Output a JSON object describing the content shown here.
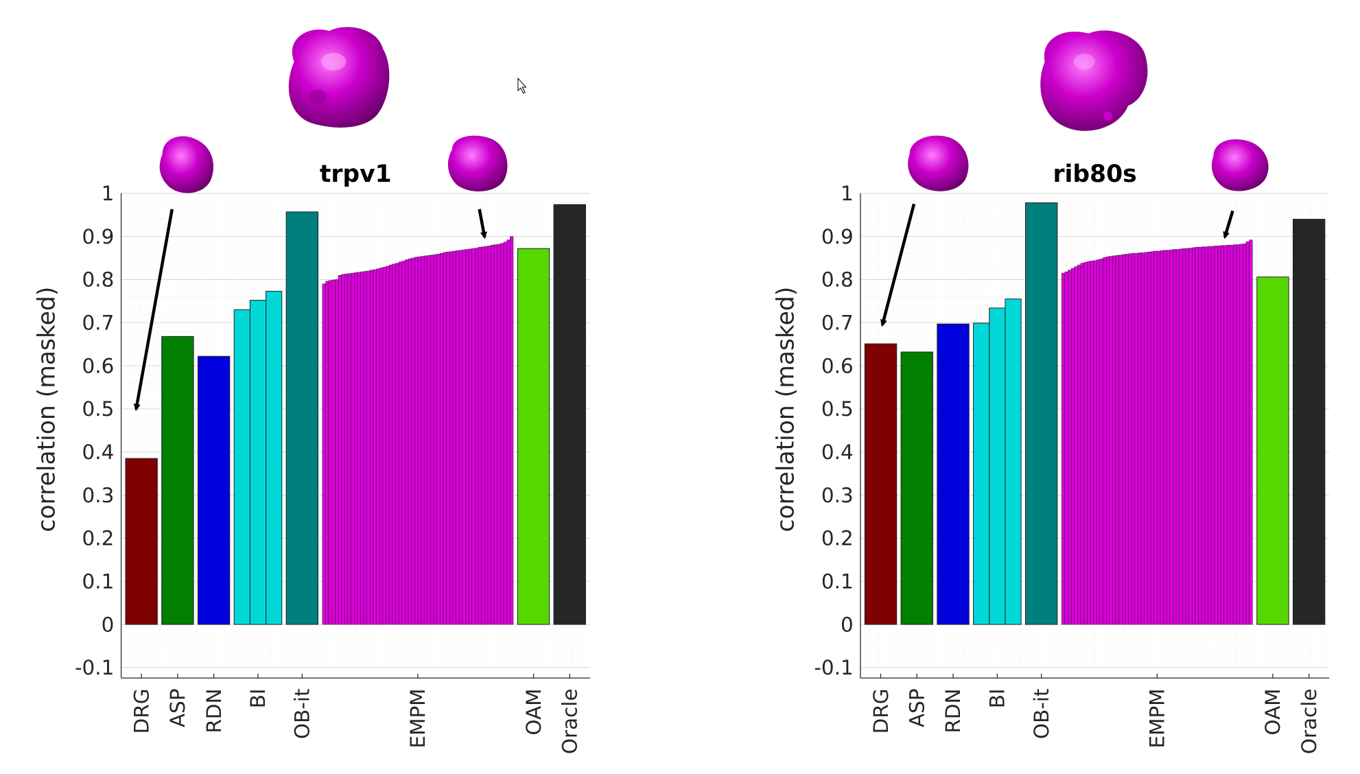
{
  "chart_data": [
    {
      "type": "bar",
      "title": "trpv1",
      "ylabel": "correlation (masked)",
      "xlabel": "",
      "ylim": [
        -0.1,
        1
      ],
      "yticks": [
        "-0.1",
        "0",
        "0.1",
        "0.2",
        "0.3",
        "0.4",
        "0.5",
        "0.6",
        "0.7",
        "0.8",
        "0.9",
        "1"
      ],
      "grid": true,
      "categories": [
        "DRG",
        "ASP",
        "RDN",
        "BI",
        "OB-it",
        "EMPM",
        "OAM",
        "Oracle"
      ],
      "groups": [
        {
          "label": "DRG",
          "color": "#7f0000",
          "values": [
            0.385
          ]
        },
        {
          "label": "ASP",
          "color": "#007f00",
          "values": [
            0.668
          ]
        },
        {
          "label": "RDN",
          "color": "#0000dd",
          "values": [
            0.622
          ]
        },
        {
          "label": "BI",
          "color": "#00d8d8",
          "values": [
            0.73,
            0.752,
            0.773
          ]
        },
        {
          "label": "OB-it",
          "color": "#007f7f",
          "values": [
            0.957
          ]
        },
        {
          "label": "EMPM",
          "color": "#dd00dd",
          "values": [
            0.79,
            0.796,
            0.798,
            0.799,
            0.8,
            0.81,
            0.812,
            0.813,
            0.814,
            0.815,
            0.816,
            0.817,
            0.818,
            0.819,
            0.82,
            0.822,
            0.823,
            0.825,
            0.827,
            0.829,
            0.831,
            0.834,
            0.836,
            0.838,
            0.841,
            0.843,
            0.846,
            0.848,
            0.85,
            0.852,
            0.853,
            0.854,
            0.855,
            0.856,
            0.857,
            0.858,
            0.859,
            0.861,
            0.863,
            0.864,
            0.865,
            0.866,
            0.867,
            0.868,
            0.869,
            0.87,
            0.871,
            0.872,
            0.873,
            0.875,
            0.876,
            0.877,
            0.878,
            0.88,
            0.881,
            0.882,
            0.884,
            0.887,
            0.892,
            0.9
          ]
        },
        {
          "label": "OAM",
          "color": "#55d800",
          "values": [
            0.872
          ]
        },
        {
          "label": "Oracle",
          "color": "#262626",
          "values": [
            0.974
          ]
        }
      ]
    },
    {
      "type": "bar",
      "title": "rib80s",
      "ylabel": "correlation (masked)",
      "xlabel": "",
      "ylim": [
        -0.1,
        1
      ],
      "yticks": [
        "-0.1",
        "0",
        "0.1",
        "0.2",
        "0.3",
        "0.4",
        "0.5",
        "0.6",
        "0.7",
        "0.8",
        "0.9",
        "1"
      ],
      "grid": true,
      "categories": [
        "DRG",
        "ASP",
        "RDN",
        "BI",
        "OB-it",
        "EMPM",
        "OAM",
        "Oracle"
      ],
      "groups": [
        {
          "label": "DRG",
          "color": "#7f0000",
          "values": [
            0.651
          ]
        },
        {
          "label": "ASP",
          "color": "#007f00",
          "values": [
            0.632
          ]
        },
        {
          "label": "RDN",
          "color": "#0000dd",
          "values": [
            0.697
          ]
        },
        {
          "label": "BI",
          "color": "#00d8d8",
          "values": [
            0.699,
            0.734,
            0.755
          ]
        },
        {
          "label": "OB-it",
          "color": "#007f7f",
          "values": [
            0.978
          ]
        },
        {
          "label": "EMPM",
          "color": "#dd00dd",
          "values": [
            0.815,
            0.818,
            0.822,
            0.826,
            0.83,
            0.834,
            0.838,
            0.84,
            0.842,
            0.843,
            0.844,
            0.846,
            0.848,
            0.851,
            0.853,
            0.854,
            0.855,
            0.856,
            0.857,
            0.858,
            0.859,
            0.86,
            0.861,
            0.861,
            0.862,
            0.862,
            0.863,
            0.864,
            0.865,
            0.866,
            0.866,
            0.867,
            0.868,
            0.868,
            0.869,
            0.87,
            0.87,
            0.871,
            0.872,
            0.872,
            0.873,
            0.874,
            0.875,
            0.875,
            0.876,
            0.876,
            0.877,
            0.877,
            0.878,
            0.878,
            0.879,
            0.879,
            0.88,
            0.88,
            0.881,
            0.881,
            0.882,
            0.883,
            0.888,
            0.892
          ]
        },
        {
          "label": "OAM",
          "color": "#55d800",
          "values": [
            0.806
          ]
        },
        {
          "label": "Oracle",
          "color": "#262626",
          "values": [
            0.94
          ]
        }
      ]
    }
  ],
  "molecule_color": "#cc00cc",
  "annotations": [
    "arrow from small molecule render to DRG bar",
    "arrow from small molecule render to EMPM bar"
  ]
}
